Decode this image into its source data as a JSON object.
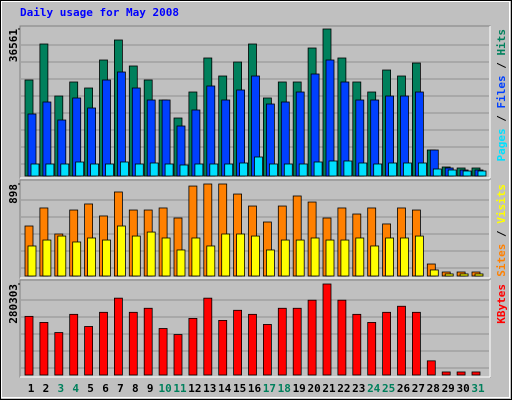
{
  "chart_data": [
    {
      "type": "bar",
      "title": "Daily usage for May 2008",
      "title_color": "#0000ff",
      "ylim": [
        0,
        36561
      ],
      "yticks": [
        36561
      ],
      "legend_separator": " / ",
      "series": [
        {
          "name": "Pages",
          "color": "#00e0ff",
          "values": [
            2984,
            2984,
            2984,
            3482,
            2984,
            2984,
            3482,
            2984,
            3233,
            2984,
            2736,
            2984,
            2984,
            2984,
            3233,
            4725,
            2984,
            2984,
            2984,
            3482,
            3731,
            3731,
            3233,
            2984,
            3233,
            3233,
            3233,
            1741,
            1492,
            1244,
            1244
          ]
        },
        {
          "name": "Files",
          "color": "#0040ff",
          "values": [
            15420,
            18405,
            13925,
            19400,
            16910,
            23875,
            25865,
            21885,
            18900,
            18900,
            12435,
            16415,
            22385,
            18900,
            21390,
            24870,
            17905,
            18405,
            20890,
            25370,
            28850,
            23380,
            18900,
            18900,
            19895,
            19895,
            20890,
            6465,
            1990,
            1490,
            1490
          ]
        },
        {
          "name": "Hits",
          "color": "#00805c",
          "values": [
            23875,
            32830,
            19895,
            23380,
            21885,
            28850,
            33825,
            27360,
            23875,
            18900,
            14425,
            20890,
            29350,
            24870,
            28350,
            32830,
            19400,
            23380,
            23380,
            31835,
            36561,
            29350,
            23380,
            20890,
            26360,
            24870,
            28100,
            6465,
            2240,
            1990,
            1990
          ]
        }
      ]
    },
    {
      "type": "bar",
      "ylim": [
        0,
        898
      ],
      "yticks": [
        898
      ],
      "legend_separator": " / ",
      "series": [
        {
          "name": "Sites",
          "color": "#ff8000",
          "values": [
            488,
            664,
            410,
            644,
            703,
            586,
            820,
            644,
            644,
            664,
            566,
            878,
            898,
            898,
            800,
            683,
            527,
            683,
            781,
            722,
            566,
            664,
            605,
            664,
            508,
            664,
            644,
            117,
            39,
            39,
            39
          ]
        },
        {
          "name": "Visits",
          "color": "#ffff00",
          "values": [
            293,
            351,
            390,
            332,
            371,
            351,
            488,
            390,
            429,
            371,
            254,
            371,
            293,
            410,
            410,
            390,
            254,
            351,
            351,
            371,
            351,
            351,
            371,
            293,
            371,
            371,
            390,
            59,
            20,
            20,
            20
          ]
        }
      ]
    },
    {
      "type": "bar",
      "ylim": [
        0,
        280303
      ],
      "yticks": [
        280303
      ],
      "categories": [
        "1",
        "2",
        "3",
        "4",
        "5",
        "6",
        "7",
        "8",
        "9",
        "10",
        "11",
        "12",
        "13",
        "14",
        "15",
        "16",
        "17",
        "18",
        "19",
        "20",
        "21",
        "22",
        "23",
        "24",
        "25",
        "26",
        "27",
        "28",
        "29",
        "30",
        "31"
      ],
      "label_colors": [
        "#000000",
        "#000000",
        "#00805c",
        "#00805c",
        "#000000",
        "#000000",
        "#000000",
        "#000000",
        "#000000",
        "#00805c",
        "#00805c",
        "#000000",
        "#000000",
        "#000000",
        "#000000",
        "#000000",
        "#00805c",
        "#00805c",
        "#000000",
        "#000000",
        "#000000",
        "#000000",
        "#000000",
        "#00805c",
        "#00805c",
        "#000000",
        "#000000",
        "#000000",
        "#000000",
        "#000000",
        "#00805c"
      ],
      "series": [
        {
          "name": "KBytes",
          "color": "#ff0000",
          "values": [
            180641,
            161954,
            130809,
            186870,
            149496,
            193099,
            236702,
            193099,
            205557,
            143267,
            124580,
            174412,
            236702,
            168183,
            199328,
            186870,
            155725,
            205557,
            205557,
            230473,
            280303,
            230473,
            186870,
            161954,
            193099,
            211786,
            193099,
            43603,
            9344,
            9344,
            9344
          ]
        }
      ]
    }
  ]
}
